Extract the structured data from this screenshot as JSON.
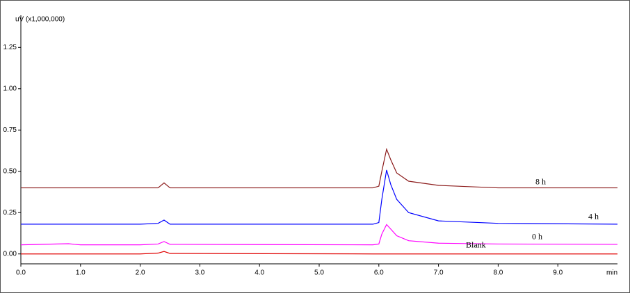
{
  "chart_data": {
    "type": "line",
    "y_label": "uV (x1,000,000)",
    "x_label": "min",
    "x": [
      0,
      0.8,
      0.9,
      1.0,
      2.0,
      2.3,
      2.4,
      2.5,
      5.9,
      6.0,
      6.05,
      6.13,
      6.2,
      6.3,
      6.5,
      7.0,
      8.0,
      10.0
    ],
    "series": [
      {
        "name": "8 h",
        "color": "#8b1a1a",
        "values": [
          0.4,
          0.4,
          0.4,
          0.4,
          0.4,
          0.4,
          0.43,
          0.4,
          0.4,
          0.41,
          0.5,
          0.634,
          0.57,
          0.49,
          0.44,
          0.415,
          0.4,
          0.4
        ]
      },
      {
        "name": "4 h",
        "color": "#0000ff",
        "values": [
          0.18,
          0.18,
          0.18,
          0.18,
          0.18,
          0.185,
          0.205,
          0.18,
          0.18,
          0.19,
          0.33,
          0.508,
          0.42,
          0.33,
          0.25,
          0.2,
          0.185,
          0.18
        ]
      },
      {
        "name": "0 h",
        "color": "#ff00ff",
        "values": [
          0.055,
          0.062,
          0.058,
          0.055,
          0.055,
          0.06,
          0.075,
          0.058,
          0.055,
          0.06,
          0.12,
          0.178,
          0.15,
          0.11,
          0.08,
          0.065,
          0.06,
          0.058
        ]
      },
      {
        "name": "Blank",
        "color": "#e00000",
        "values": [
          0,
          0,
          0,
          0,
          0,
          0.005,
          0.015,
          0.003,
          0,
          0,
          0,
          0,
          0,
          0,
          0,
          0,
          0,
          0
        ]
      }
    ],
    "xlim": [
      0,
      10
    ],
    "ylim": [
      -0.06,
      1.39
    ],
    "xticks": [
      {
        "value": 0,
        "label": "0.0"
      },
      {
        "value": 1,
        "label": "1.0"
      },
      {
        "value": 2,
        "label": "2.0"
      },
      {
        "value": 3,
        "label": "3.0"
      },
      {
        "value": 4,
        "label": "4.0"
      },
      {
        "value": 5,
        "label": "5.0"
      },
      {
        "value": 6,
        "label": "6.0"
      },
      {
        "value": 7,
        "label": "7.0"
      },
      {
        "value": 8,
        "label": "8.0"
      },
      {
        "value": 9,
        "label": "9.0"
      }
    ],
    "yticks": [
      {
        "value": 0,
        "label": "0.00"
      },
      {
        "value": 0.25,
        "label": "0.25"
      },
      {
        "value": 0.5,
        "label": "0.50"
      },
      {
        "value": 0.75,
        "label": "0.75"
      },
      {
        "value": 1,
        "label": "1.00"
      },
      {
        "value": 1.25,
        "label": "1.25"
      }
    ],
    "grid": false
  }
}
